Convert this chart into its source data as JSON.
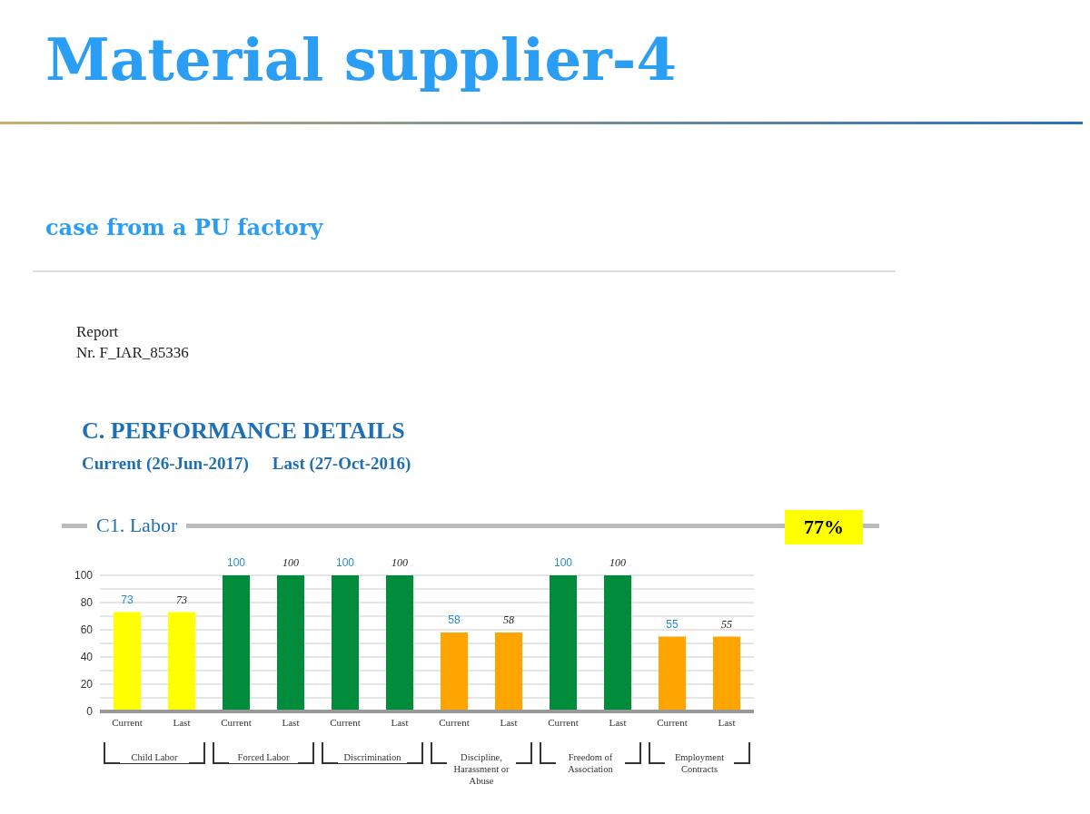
{
  "chart_data": {
    "type": "bar",
    "title": "Material supplier-4",
    "subtitle": "case from a PU factory",
    "annotations": [
      "Report",
      "Nr. F_IAR_85336",
      "C. PERFORMANCE DETAILS",
      "Current (26-Jun-2017)",
      "Last (27-Oct-2016)",
      "C1. Labor",
      "77%",
      "Child Labor",
      "Forced Labor",
      "Discrimination",
      "Discipline, Harassment or Abuse",
      "Freedom of Association",
      "Employment Contracts"
    ],
    "categories": [
      "Current",
      "Last",
      "Current",
      "Last",
      "Current",
      "Last",
      "Current",
      "Last",
      "Current",
      "Last",
      "Current",
      "Last"
    ],
    "values": [
      73,
      73,
      100,
      100,
      100,
      100,
      58,
      58,
      100,
      100,
      55,
      55
    ],
    "colors": [
      "#ffff00",
      "#ffff00",
      "#008c3a",
      "#008c3a",
      "#008c3a",
      "#008c3a",
      "#ffa500",
      "#ffa500",
      "#008c3a",
      "#008c3a",
      "#ffa500",
      "#ffa500"
    ],
    "ylim": [
      0,
      100
    ],
    "yticks": [
      0,
      {
        "value": 10,
        "label": null
      },
      20,
      {
        "value": 30,
        "label": null
      },
      40,
      {
        "value": 50,
        "label": null
      },
      60,
      {
        "value": 70,
        "label": null
      },
      80,
      {
        "value": 90,
        "label": null
      },
      100
    ],
    "grid": "y",
    "data_labels": true
  }
}
